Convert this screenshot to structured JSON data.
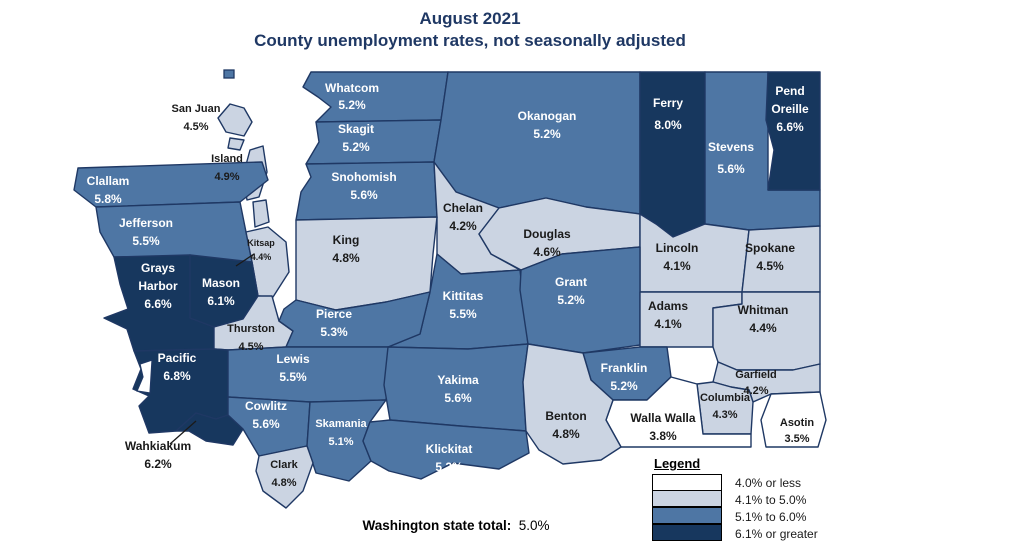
{
  "title": {
    "line1": "August 2021",
    "line2": "County unemployment rates, not seasonally adjusted"
  },
  "legend": {
    "title": "Legend",
    "items": [
      {
        "label": "4.0% or less",
        "color": "#FFFFFF"
      },
      {
        "label": "4.1% to 5.0%",
        "color": "#CBD4E2"
      },
      {
        "label": "5.1% to 6.0%",
        "color": "#4E76A4"
      },
      {
        "label": "6.1% or greater",
        "color": "#17375E"
      }
    ]
  },
  "footer": {
    "label": "Washington state total:",
    "value": "5.0%"
  },
  "colors": {
    "border": "#1F3864",
    "title_text": "#1F3864",
    "label_dark": "#1a1a1a",
    "label_light": "#FFFFFF"
  },
  "chart_data": {
    "type": "choropleth-map",
    "region": "Washington state counties",
    "unit": "unemployment rate, percent",
    "bins": [
      {
        "range": "4.0% or less",
        "max": 4.0
      },
      {
        "range": "4.1% to 5.0%",
        "max": 5.0
      },
      {
        "range": "5.1% to 6.0%",
        "max": 6.0
      },
      {
        "range": "6.1% or greater",
        "max": 99.0
      }
    ],
    "state_total": 5.0,
    "counties": [
      {
        "name": "Whatcom",
        "value": 5.2,
        "label": "5.2%"
      },
      {
        "name": "San Juan",
        "value": 4.5,
        "label": "4.5%"
      },
      {
        "name": "Island",
        "value": 4.9,
        "label": "4.9%"
      },
      {
        "name": "Skagit",
        "value": 5.2,
        "label": "5.2%"
      },
      {
        "name": "Snohomish",
        "value": 5.6,
        "label": "5.6%"
      },
      {
        "name": "Okanogan",
        "value": 5.2,
        "label": "5.2%"
      },
      {
        "name": "Ferry",
        "value": 8.0,
        "label": "8.0%"
      },
      {
        "name": "Stevens",
        "value": 5.6,
        "label": "5.6%"
      },
      {
        "name": "Pend Oreille",
        "value": 6.6,
        "label": "6.6%"
      },
      {
        "name": "Clallam",
        "value": 5.8,
        "label": "5.8%"
      },
      {
        "name": "Jefferson",
        "value": 5.5,
        "label": "5.5%"
      },
      {
        "name": "Kitsap",
        "value": 4.4,
        "label": "4.4%"
      },
      {
        "name": "Chelan",
        "value": 4.2,
        "label": "4.2%"
      },
      {
        "name": "Douglas",
        "value": 4.6,
        "label": "4.6%"
      },
      {
        "name": "King",
        "value": 4.8,
        "label": "4.8%"
      },
      {
        "name": "Lincoln",
        "value": 4.1,
        "label": "4.1%"
      },
      {
        "name": "Spokane",
        "value": 4.5,
        "label": "4.5%"
      },
      {
        "name": "Grays Harbor",
        "value": 6.6,
        "label": "6.6%"
      },
      {
        "name": "Mason",
        "value": 6.1,
        "label": "6.1%"
      },
      {
        "name": "Kittitas",
        "value": 5.5,
        "label": "5.5%"
      },
      {
        "name": "Grant",
        "value": 5.2,
        "label": "5.2%"
      },
      {
        "name": "Adams",
        "value": 4.1,
        "label": "4.1%"
      },
      {
        "name": "Whitman",
        "value": 4.4,
        "label": "4.4%"
      },
      {
        "name": "Thurston",
        "value": 4.5,
        "label": "4.5%"
      },
      {
        "name": "Pierce",
        "value": 5.3,
        "label": "5.3%"
      },
      {
        "name": "Pacific",
        "value": 6.8,
        "label": "6.8%"
      },
      {
        "name": "Lewis",
        "value": 5.5,
        "label": "5.5%"
      },
      {
        "name": "Yakima",
        "value": 5.6,
        "label": "5.6%"
      },
      {
        "name": "Franklin",
        "value": 5.2,
        "label": "5.2%"
      },
      {
        "name": "Garfield",
        "value": 4.2,
        "label": "4.2%"
      },
      {
        "name": "Columbia",
        "value": 4.3,
        "label": "4.3%"
      },
      {
        "name": "Walla Walla",
        "value": 3.8,
        "label": "3.8%"
      },
      {
        "name": "Asotin",
        "value": 3.5,
        "label": "3.5%"
      },
      {
        "name": "Wahkiakum",
        "value": 6.2,
        "label": "6.2%"
      },
      {
        "name": "Cowlitz",
        "value": 5.6,
        "label": "5.6%"
      },
      {
        "name": "Skamania",
        "value": 5.1,
        "label": "5.1%"
      },
      {
        "name": "Clark",
        "value": 4.8,
        "label": "4.8%"
      },
      {
        "name": "Klickitat",
        "value": 5.2,
        "label": "5.2%"
      },
      {
        "name": "Benton",
        "value": 4.8,
        "label": "4.8%"
      }
    ]
  }
}
